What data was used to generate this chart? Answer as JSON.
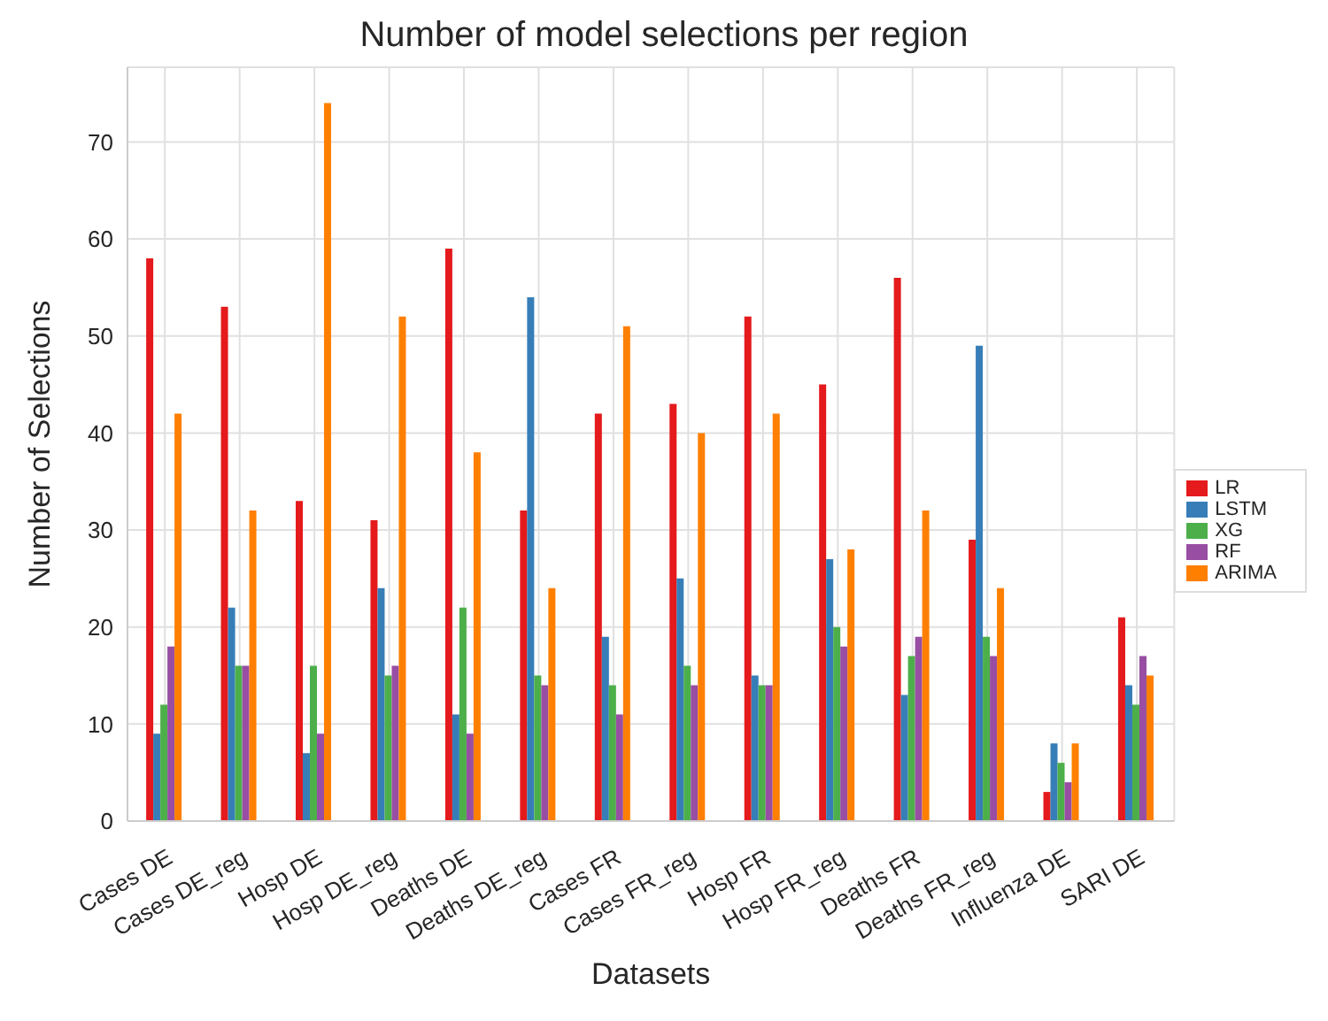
{
  "chart_data": {
    "type": "bar",
    "title": "Number of model selections per region",
    "xlabel": "Datasets",
    "ylabel": "Number of Selections",
    "categories": [
      "Cases DE",
      "Cases DE_reg",
      "Hosp DE",
      "Hosp DE_reg",
      "Deaths DE",
      "Deaths DE_reg",
      "Cases FR",
      "Cases FR_reg",
      "Hosp FR",
      "Hosp FR_reg",
      "Deaths FR",
      "Deaths FR_reg",
      "Influenza DE",
      "SARI DE"
    ],
    "series": [
      {
        "name": "LR",
        "color": "#e41a1c",
        "values": [
          58,
          53,
          33,
          31,
          59,
          32,
          42,
          43,
          52,
          45,
          56,
          29,
          3,
          21
        ]
      },
      {
        "name": "LSTM",
        "color": "#377eb8",
        "values": [
          9,
          22,
          7,
          24,
          11,
          54,
          19,
          25,
          15,
          27,
          13,
          49,
          8,
          14
        ]
      },
      {
        "name": "XG",
        "color": "#4daf4a",
        "values": [
          12,
          16,
          16,
          15,
          22,
          15,
          14,
          16,
          14,
          20,
          17,
          19,
          6,
          12
        ]
      },
      {
        "name": "RF",
        "color": "#984ea3",
        "values": [
          18,
          16,
          9,
          16,
          9,
          14,
          11,
          14,
          14,
          18,
          19,
          17,
          4,
          17
        ]
      },
      {
        "name": "ARIMA",
        "color": "#ff7f00",
        "values": [
          42,
          32,
          74,
          52,
          38,
          24,
          51,
          40,
          42,
          28,
          32,
          24,
          8,
          15
        ]
      }
    ],
    "ylim": [
      0,
      77.7
    ],
    "yticks": [
      0,
      10,
      20,
      30,
      40,
      50,
      60,
      70
    ],
    "grid": true,
    "legend": "right"
  }
}
